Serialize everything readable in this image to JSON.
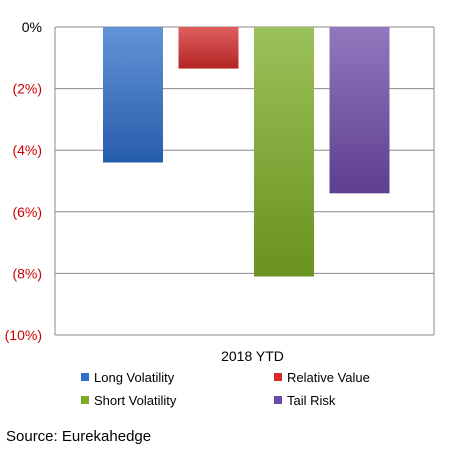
{
  "chart_data": {
    "type": "bar",
    "categories": [
      "2018 YTD"
    ],
    "series": [
      {
        "name": "Long Volatility",
        "values": [
          -4.4
        ],
        "color": "#2e6fc9"
      },
      {
        "name": "Relative Value",
        "values": [
          -1.35
        ],
        "color": "#d42a2a"
      },
      {
        "name": "Short Volatility",
        "values": [
          -8.1
        ],
        "color": "#7cac23"
      },
      {
        "name": "Tail Risk",
        "values": [
          -5.4
        ],
        "color": "#6e4aa8"
      }
    ],
    "ylim": [
      -10,
      0
    ],
    "yticks": [
      0,
      -2,
      -4,
      -6,
      -8,
      -10
    ],
    "ytick_labels": [
      "0%",
      "(2%)",
      "(4%)",
      "(6%)",
      "(8%)",
      "(10%)"
    ],
    "grid": true,
    "legend_placement": "bottom",
    "title": "",
    "xlabel": "",
    "ylabel": ""
  },
  "source": "Source: Eurekahedge"
}
